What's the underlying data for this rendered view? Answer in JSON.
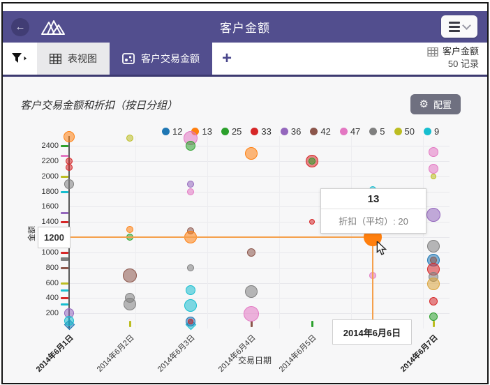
{
  "header": {
    "title": "客户金额"
  },
  "tabbar": {
    "tabs": [
      {
        "label": "表视图",
        "active": false
      },
      {
        "label": "客户交易金额",
        "active": true
      }
    ],
    "add_label": "+",
    "dataset": {
      "name": "客户金额",
      "records": "50 记录"
    }
  },
  "panel": {
    "title": "客户交易金额和折扣（按日分组）",
    "config_label": "配置"
  },
  "chart_data": {
    "type": "scatter",
    "title": "客户交易金额和折扣（按日分组）",
    "xlabel": "交易日期",
    "ylabel": "金额",
    "ylim": [
      0,
      2500
    ],
    "yticks": [
      200,
      400,
      600,
      800,
      1000,
      1200,
      1400,
      1600,
      1800,
      2000,
      2200,
      2400
    ],
    "grid": true,
    "x_categories": [
      "2014年6月1日",
      "2014年6月2日",
      "2014年6月3日",
      "2014年6月4日",
      "2014年6月5日",
      "2014年6月6日",
      "2014年6月7日"
    ],
    "x_bold_indices": [
      0,
      6
    ],
    "legend": {
      "position": "top",
      "entries": [
        {
          "label": "12",
          "color": "#1f77b4"
        },
        {
          "label": "13",
          "color": "#ff7f0e"
        },
        {
          "label": "25",
          "color": "#2ca02c"
        },
        {
          "label": "33",
          "color": "#d62728"
        },
        {
          "label": "36",
          "color": "#9467bd"
        },
        {
          "label": "42",
          "color": "#8c564b"
        },
        {
          "label": "47",
          "color": "#e377c2"
        },
        {
          "label": "5",
          "color": "#7f7f7f"
        },
        {
          "label": "50",
          "color": "#bcbd22"
        },
        {
          "label": "9",
          "color": "#17becf"
        }
      ]
    },
    "bubbles": [
      {
        "xi": 0,
        "customer": "13",
        "value": 2520,
        "r": 8
      },
      {
        "xi": 0,
        "customer": "33",
        "value": 2200,
        "r": 5
      },
      {
        "xi": 0,
        "customer": "33",
        "value": 2120,
        "r": 5
      },
      {
        "xi": 0,
        "customer": "5",
        "value": 1900,
        "r": 7
      },
      {
        "xi": 0,
        "customer": "36",
        "value": 200,
        "r": 7
      },
      {
        "xi": 0,
        "customer": "9",
        "value": 100,
        "r": 7
      },
      {
        "xi": 1,
        "customer": "50",
        "value": 2500,
        "r": 5
      },
      {
        "xi": 1,
        "customer": "13",
        "value": 1300,
        "r": 5
      },
      {
        "xi": 1,
        "customer": "25",
        "value": 1200,
        "r": 5
      },
      {
        "xi": 1,
        "customer": "42",
        "value": 700,
        "r": 10
      },
      {
        "xi": 1,
        "customer": "5",
        "value": 400,
        "r": 7
      },
      {
        "xi": 1,
        "customer": "5",
        "value": 320,
        "r": 9
      },
      {
        "xi": 2,
        "customer": "47",
        "value": 2500,
        "r": 10
      },
      {
        "xi": 2,
        "customer": "25",
        "value": 2400,
        "r": 7
      },
      {
        "xi": 2,
        "customer": "36",
        "value": 1900,
        "r": 5
      },
      {
        "xi": 2,
        "customer": "47",
        "value": 1800,
        "r": 5
      },
      {
        "xi": 2,
        "customer": "42",
        "value": 1280,
        "r": 5
      },
      {
        "xi": 2,
        "customer": "13",
        "value": 1200,
        "r": 9
      },
      {
        "xi": 2,
        "customer": "5",
        "value": 800,
        "r": 5
      },
      {
        "xi": 2,
        "customer": "9",
        "value": 500,
        "r": 7
      },
      {
        "xi": 2,
        "customer": "9",
        "value": 300,
        "r": 9
      },
      {
        "xi": 2,
        "customer": "12",
        "value": 90,
        "r": 7
      },
      {
        "xi": 2,
        "customer": "33",
        "value": 90,
        "r": 4
      },
      {
        "xi": 3,
        "customer": "13",
        "value": 2300,
        "r": 9
      },
      {
        "xi": 3,
        "customer": "42",
        "value": 1000,
        "r": 6
      },
      {
        "xi": 3,
        "customer": "5",
        "value": 490,
        "r": 9
      },
      {
        "xi": 3,
        "customer": "47",
        "value": 190,
        "r": 11
      },
      {
        "xi": 4,
        "customer": "33",
        "value": 2200,
        "r": 9
      },
      {
        "xi": 4,
        "customer": "25",
        "value": 2200,
        "r": 5
      },
      {
        "xi": 4,
        "customer": "33",
        "value": 1400,
        "r": 4
      },
      {
        "xi": 5,
        "customer": "9",
        "value": 1820,
        "r": 5
      },
      {
        "xi": 5,
        "customer": "50",
        "value": 1295,
        "r": 8
      },
      {
        "xi": 5,
        "customer": "25",
        "value": 1290,
        "r": 6
      },
      {
        "xi": 5,
        "customer": "13",
        "value": 1200,
        "r": 13,
        "solid": true
      },
      {
        "xi": 5,
        "customer": "47",
        "value": 700,
        "r": 5
      },
      {
        "xi": 6,
        "customer": "47",
        "value": 2320,
        "r": 7
      },
      {
        "xi": 6,
        "customer": "47",
        "value": 2100,
        "r": 7
      },
      {
        "xi": 6,
        "customer": "50",
        "value": 2000,
        "r": 4
      },
      {
        "xi": 6,
        "customer": "36",
        "value": 1490,
        "r": 10
      },
      {
        "xi": 6,
        "customer": "5",
        "value": 1080,
        "r": 9
      },
      {
        "xi": 6,
        "customer": "12",
        "value": 900,
        "r": 9
      },
      {
        "xi": 6,
        "customer": "42",
        "value": 900,
        "r": 5
      },
      {
        "xi": 6,
        "customer": "33",
        "value": 780,
        "r": 9
      },
      {
        "xi": 6,
        "customer": "5",
        "value": 680,
        "r": 7
      },
      {
        "xi": 6,
        "customer": "13",
        "value": 590,
        "r": 9,
        "color": "#dba43a"
      },
      {
        "xi": 6,
        "customer": "33",
        "value": 360,
        "r": 6
      },
      {
        "xi": 6,
        "customer": "25",
        "value": 160,
        "r": 6
      }
    ],
    "y_axis_marks": [
      {
        "value": 2400,
        "customer": "25"
      },
      {
        "value": 2270,
        "customer": "47"
      },
      {
        "value": 2000,
        "customer": "50"
      },
      {
        "value": 1800,
        "customer": "9"
      },
      {
        "value": 1520,
        "customer": "36"
      },
      {
        "value": 1400,
        "customer": "33"
      },
      {
        "value": 1270,
        "customer": "9",
        "small": true
      },
      {
        "value": 1000,
        "customer": "33"
      },
      {
        "value": 930,
        "customer": "5",
        "thick": true
      },
      {
        "value": 800,
        "customer": "42"
      },
      {
        "value": 600,
        "customer": "50"
      },
      {
        "value": 500,
        "customer": "9"
      },
      {
        "value": 400,
        "customer": "33"
      },
      {
        "value": 320,
        "customer": "9"
      }
    ],
    "x_rug_ticks": [
      {
        "xi": 1,
        "customer": "50"
      },
      {
        "xi": 3,
        "customer": "42"
      },
      {
        "xi": 4,
        "customer": "25"
      },
      {
        "xi": 6,
        "customer": "50"
      }
    ],
    "x_rug_diamonds": [
      {
        "xi": 0,
        "customer": "12"
      },
      {
        "xi": 2,
        "customer": "9"
      }
    ],
    "hover": {
      "customer": "13",
      "date": "2014年6月6日",
      "amount_label": "1200",
      "tooltip_title": "13",
      "tooltip_row": "折扣（平均）: 20"
    }
  }
}
